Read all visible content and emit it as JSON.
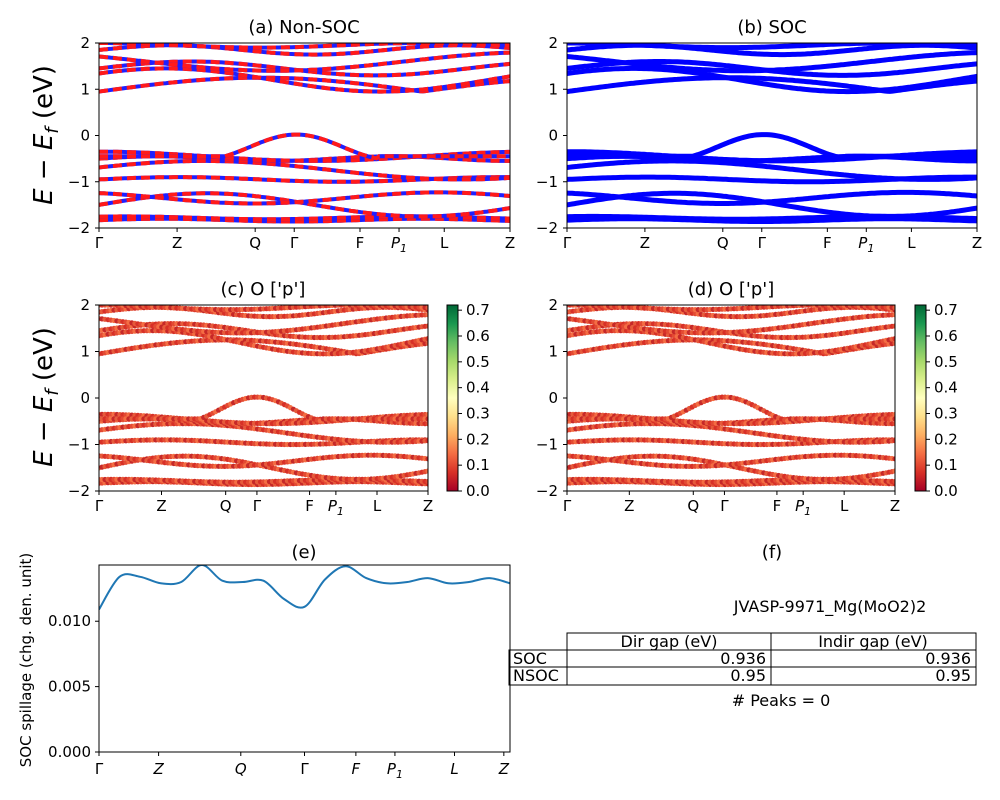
{
  "figure": {
    "ylabel_main": "E − E",
    "ylabel_sub": "f",
    "ylabel_unit": " (eV)",
    "kpath": [
      "Γ",
      "Z",
      "Q",
      "Γ",
      "F",
      "P1",
      "L",
      "Z"
    ]
  },
  "panels": [
    {
      "title": "(a) Non-SOC",
      "type": "bands"
    },
    {
      "title": "(b) SOC",
      "type": "bands"
    },
    {
      "title": "(c)  O ['p']",
      "type": "projected-bands",
      "colorbar_ticks": [
        "0.0",
        "0.1",
        "0.2",
        "0.3",
        "0.4",
        "0.5",
        "0.6",
        "0.7"
      ]
    },
    {
      "title": "(d) O ['p']",
      "type": "projected-bands",
      "colorbar_ticks": [
        "0.0",
        "0.1",
        "0.2",
        "0.3",
        "0.4",
        "0.5",
        "0.6",
        "0.7"
      ]
    },
    {
      "title": "(e)",
      "type": "line",
      "ylabel": "SOC spillage (chg. den. unit)"
    },
    {
      "title": "(f)",
      "type": "table"
    }
  ],
  "chart_data": [
    {
      "type": "line",
      "title": "(a) Non-SOC",
      "ylabel": "E − E_f (eV)",
      "ylim": [
        -2,
        2
      ],
      "xticks": [
        "Γ",
        "Z",
        "Q",
        "Γ",
        "F",
        "P1",
        "L",
        "Z"
      ],
      "yticks": [
        -2,
        -1,
        0,
        1,
        2
      ]
    },
    {
      "type": "line",
      "title": "(b) SOC",
      "ylim": [
        -2,
        2
      ],
      "xticks": [
        "Γ",
        "Z",
        "Q",
        "Γ",
        "F",
        "P1",
        "L",
        "Z"
      ],
      "yticks": [
        -2,
        -1,
        0,
        1,
        2
      ]
    },
    {
      "type": "scatter",
      "title": "(c)  O ['p']",
      "ylabel": "E − E_f (eV)",
      "ylim": [
        -2,
        2
      ],
      "colorbar_range": [
        0,
        0.72
      ],
      "xticks": [
        "Γ",
        "Z",
        "Q",
        "Γ",
        "F",
        "P1",
        "L",
        "Z"
      ]
    },
    {
      "type": "scatter",
      "title": "(d) O ['p']",
      "ylim": [
        -2,
        2
      ],
      "colorbar_range": [
        0,
        0.72
      ],
      "xticks": [
        "Γ",
        "Z",
        "Q",
        "Γ",
        "F",
        "P1",
        "L",
        "Z"
      ]
    },
    {
      "type": "line",
      "title": "(e)",
      "ylabel": "SOC spillage (chg. den. unit)",
      "ylim": [
        0,
        0.0143
      ],
      "yticks": [
        "0.000",
        "0.005",
        "0.010"
      ],
      "xticks": [
        "Γ",
        "Z",
        "Q",
        "Γ",
        "F",
        "P1",
        "L",
        "Z"
      ],
      "x": [
        0.0,
        0.05,
        0.1,
        0.15,
        0.2,
        0.25,
        0.3,
        0.35,
        0.4,
        0.45,
        0.5,
        0.55,
        0.6,
        0.65,
        0.7,
        0.75,
        0.8,
        0.85,
        0.9,
        0.95,
        1.0
      ],
      "y": [
        0.0109,
        0.0134,
        0.0134,
        0.0129,
        0.013,
        0.0143,
        0.0131,
        0.013,
        0.0131,
        0.0117,
        0.0111,
        0.0132,
        0.0142,
        0.0133,
        0.0129,
        0.013,
        0.0133,
        0.0129,
        0.013,
        0.0133,
        0.0129
      ]
    },
    {
      "type": "table",
      "title": "(f)",
      "caption": "JVASP-9971_Mg(MoO2)2",
      "columns": [
        "",
        "Dir gap (eV)",
        "Indir gap (eV)"
      ],
      "rows": [
        [
          "SOC",
          "0.936",
          "0.936"
        ],
        [
          "NSOC",
          "0.95",
          "0.95"
        ]
      ],
      "footer": "# Peaks = 0"
    }
  ]
}
